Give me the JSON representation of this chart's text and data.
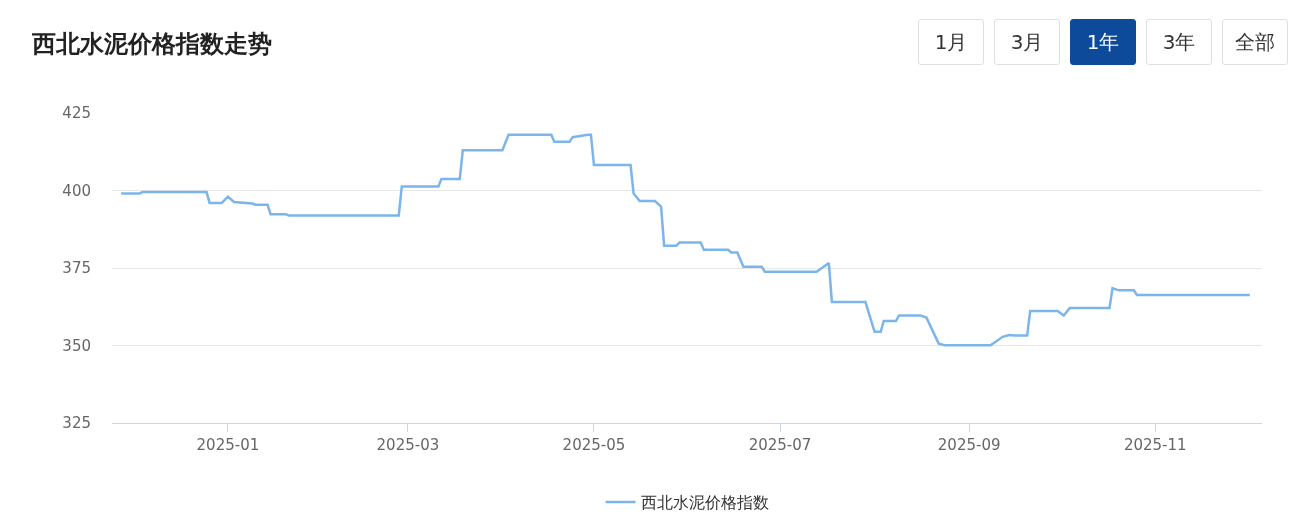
{
  "chart_data": {
    "type": "line",
    "title": "西北水泥价格指数走势",
    "annotations": [
      "1月",
      "3月",
      "1年",
      "3年",
      "全部"
    ],
    "x": [
      "2024-11-27",
      "2024-12-03",
      "2024-12-04",
      "2024-12-25",
      "2024-12-26",
      "2024-12-30",
      "2025-01-01",
      "2025-01-03",
      "2025-01-09",
      "2025-01-10",
      "2025-01-14",
      "2025-01-15",
      "2025-01-20",
      "2025-01-21",
      "2025-02-26",
      "2025-02-27",
      "2025-03-11",
      "2025-03-12",
      "2025-03-18",
      "2025-03-19",
      "2025-04-01",
      "2025-04-03",
      "2025-04-17",
      "2025-04-18",
      "2025-04-23",
      "2025-04-24",
      "2025-04-29",
      "2025-04-30",
      "2025-05-01",
      "2025-05-13",
      "2025-05-14",
      "2025-05-16",
      "2025-05-21",
      "2025-05-23",
      "2025-05-24",
      "2025-05-28",
      "2025-05-29",
      "2025-06-05",
      "2025-06-06",
      "2025-06-14",
      "2025-06-15",
      "2025-06-17",
      "2025-06-19",
      "2025-06-25",
      "2025-06-26",
      "2025-07-13",
      "2025-07-17",
      "2025-07-18",
      "2025-07-29",
      "2025-08-01",
      "2025-08-03",
      "2025-08-04",
      "2025-08-08",
      "2025-08-09",
      "2025-08-16",
      "2025-08-18",
      "2025-08-22",
      "2025-08-24",
      "2025-09-08",
      "2025-09-12",
      "2025-09-14",
      "2025-09-16",
      "2025-09-20",
      "2025-09-21",
      "2025-09-30",
      "2025-10-02",
      "2025-10-04",
      "2025-10-17",
      "2025-10-18",
      "2025-10-20",
      "2025-10-25",
      "2025-10-26",
      "2025-12-02"
    ],
    "series": [
      {
        "name": "西北水泥价格指数",
        "color": "#7cb5ec",
        "values": [
          399,
          399,
          399.5,
          399.5,
          396,
          396,
          398,
          396.3,
          395.8,
          395.4,
          395.4,
          392.3,
          392.3,
          391.9,
          391.9,
          401.3,
          401.3,
          403.7,
          403.7,
          413,
          413,
          418,
          418,
          415.7,
          415.7,
          417.2,
          418,
          418,
          408.2,
          408.2,
          399,
          396.6,
          396.6,
          394.8,
          382.2,
          382.2,
          383.2,
          383.2,
          380.9,
          380.9,
          380,
          380,
          375.4,
          375.4,
          373.8,
          373.8,
          376.6,
          364,
          364,
          354.4,
          354.4,
          357.9,
          357.9,
          359.7,
          359.7,
          359,
          350.6,
          350.1,
          350.1,
          352.8,
          353.4,
          353.2,
          353.2,
          361.1,
          361.1,
          359.7,
          362.1,
          362.1,
          368.5,
          367.8,
          367.8,
          366.3,
          366.3
        ]
      }
    ],
    "xlim": [
      "2024-11-24",
      "2025-12-06"
    ],
    "xticks": [
      "2025-01",
      "2025-03",
      "2025-05",
      "2025-07",
      "2025-09",
      "2025-11"
    ],
    "ylim": [
      325,
      425
    ],
    "yticks": [
      325,
      350,
      375,
      400,
      425
    ],
    "grid": "y",
    "legend": "bottom",
    "marker": "none",
    "line_style": "solid"
  }
}
